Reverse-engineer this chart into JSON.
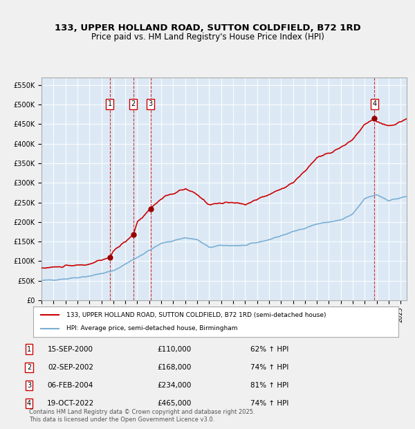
{
  "title": "133, UPPER HOLLAND ROAD, SUTTON COLDFIELD, B72 1RD",
  "subtitle": "Price paid vs. HM Land Registry's House Price Index (HPI)",
  "background_color": "#dce9f5",
  "plot_bg_color": "#dce9f5",
  "fig_bg_color": "#f0f0f0",
  "legend_label_red": "133, UPPER HOLLAND ROAD, SUTTON COLDFIELD, B72 1RD (semi-detached house)",
  "legend_label_blue": "HPI: Average price, semi-detached house, Birmingham",
  "footer": "Contains HM Land Registry data © Crown copyright and database right 2025.\nThis data is licensed under the Open Government Licence v3.0.",
  "transactions": [
    {
      "num": 1,
      "date": "15-SEP-2000",
      "price": 110000,
      "hpi_pct": "62% ↑ HPI",
      "year": 2000.71
    },
    {
      "num": 2,
      "date": "02-SEP-2002",
      "price": 168000,
      "hpi_pct": "74% ↑ HPI",
      "year": 2002.67
    },
    {
      "num": 3,
      "date": "06-FEB-2004",
      "price": 234000,
      "hpi_pct": "81% ↑ HPI",
      "year": 2004.1
    },
    {
      "num": 4,
      "date": "19-OCT-2022",
      "price": 465000,
      "hpi_pct": "74% ↑ HPI",
      "year": 2022.8
    }
  ],
  "ylim": [
    0,
    570000
  ],
  "yticks": [
    0,
    50000,
    100000,
    150000,
    200000,
    250000,
    300000,
    350000,
    400000,
    450000,
    500000,
    550000
  ],
  "xlim_start": 1995.0,
  "xlim_end": 2025.5,
  "red_color": "#cc0000",
  "blue_color": "#7aafd4",
  "dot_color": "#990000"
}
